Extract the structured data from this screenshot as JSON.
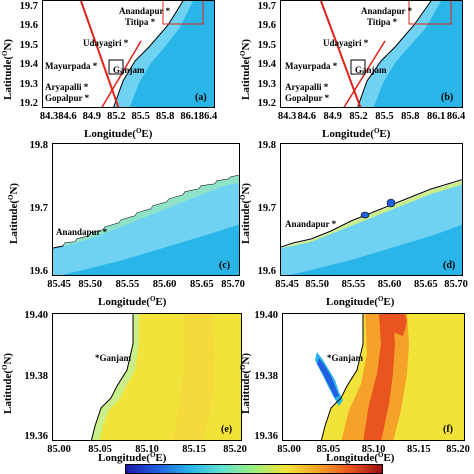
{
  "panels": [
    {
      "id": "a",
      "label": "(a)",
      "x_ticks": [
        "84.3",
        "84.6",
        "84.9",
        "85.2",
        "85.5",
        "85.8",
        "86.1",
        "86.4"
      ],
      "y_ticks": [
        "19.7",
        "19.6",
        "19.5",
        "19.4",
        "19.3",
        "19.2"
      ],
      "places": [
        "Anandapur *",
        "Titipa *",
        "Udayagiri *",
        "Mayurpada *",
        "Ganjam",
        "Aryapalli *",
        "Gopalpur *"
      ]
    },
    {
      "id": "b",
      "label": "(b)",
      "x_ticks": [
        "84.3",
        "84.6",
        "84.9",
        "85.2",
        "85.5",
        "85.8",
        "86.1",
        "86.4"
      ],
      "y_ticks": [
        "19.7",
        "19.6",
        "19.5",
        "19.4",
        "19.3",
        "19.2"
      ],
      "places": [
        "Anandapur *",
        "Titipa *",
        "Udayagiri *",
        "Mayurpada *",
        "Ganjam",
        "Aryapalli *",
        "Gopalpur *"
      ]
    },
    {
      "id": "c",
      "label": "(c)",
      "x_ticks": [
        "85.45",
        "85.50",
        "85.55",
        "85.60",
        "85.65",
        "85.70"
      ],
      "y_ticks": [
        "19.8",
        "19.7",
        "19.6"
      ],
      "places": [
        "Anandapur *"
      ]
    },
    {
      "id": "d",
      "label": "(d)",
      "x_ticks": [
        "85.45",
        "85.50",
        "85.55",
        "85.60",
        "85.65",
        "85.70"
      ],
      "y_ticks": [
        "19.8",
        "19.7",
        "19.6"
      ],
      "places": [
        "Anandapur *"
      ]
    },
    {
      "id": "e",
      "label": "(e)",
      "x_ticks": [
        "85.00",
        "85.05",
        "85.10",
        "85.15",
        "85.20"
      ],
      "y_ticks": [
        "19.40",
        "19.38",
        "19.36"
      ],
      "places": [
        "*Ganjam"
      ]
    },
    {
      "id": "f",
      "label": "(f)",
      "x_ticks": [
        "85.00",
        "85.05",
        "85.10",
        "85.15",
        "85.20"
      ],
      "y_ticks": [
        "19.40",
        "19.38",
        "19.36"
      ],
      "places": [
        "*Ganjam"
      ]
    }
  ],
  "axes": {
    "ylabel_main": "Latitude(",
    "ylabel_sup": "O",
    "ylabel_unit": "N)",
    "xlabel_main": "Longitude(",
    "xlabel_sup": "O",
    "xlabel_unit": "E)"
  },
  "colors": {
    "ocean_deep": "#2ab5e8",
    "ocean_mid": "#6fd2f2",
    "ocean_shallow": "#8fe2c8",
    "nearshore": "#c9ee8a",
    "inundation_yellow": "#f2e33a",
    "inundation_orange": "#f6a22a",
    "inundation_red": "#e8551f",
    "track_red": "#e0221a",
    "land": "#ffffff",
    "colorbar_stops": [
      "#1a1aa8",
      "#2060e0",
      "#2ab5e8",
      "#5fe0d0",
      "#9cf07a",
      "#f2e33a",
      "#f6a22a",
      "#e8551f",
      "#9a0f10"
    ]
  }
}
